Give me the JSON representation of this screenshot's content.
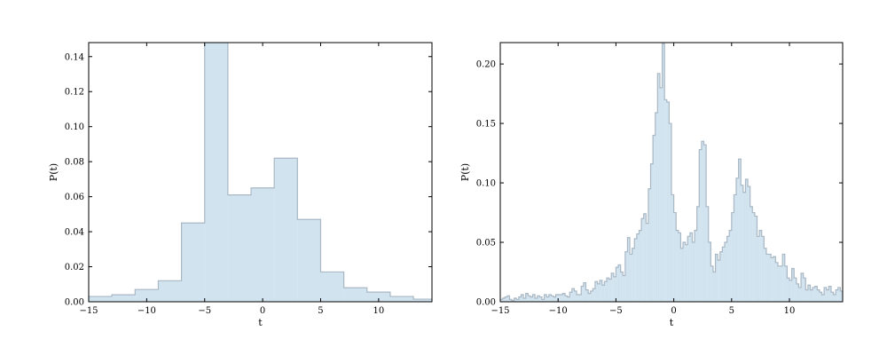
{
  "chart_data": [
    {
      "type": "histogram",
      "xlabel": "t",
      "ylabel": "P(t)",
      "xlim": [
        -15,
        14.6
      ],
      "ylim": [
        0,
        0.148
      ],
      "xticks": [
        -15,
        -10,
        -5,
        0,
        5,
        10
      ],
      "xtick_labels": [
        "−15",
        "−10",
        "−5",
        "0",
        "5",
        "10"
      ],
      "yticks": [
        0,
        0.02,
        0.04,
        0.06,
        0.08,
        0.1,
        0.12,
        0.14
      ],
      "ytick_labels": [
        "0.00",
        "0.02",
        "0.04",
        "0.06",
        "0.08",
        "0.10",
        "0.12",
        "0.14"
      ],
      "fill_color": "#d1e3ef",
      "edge_color": "#a9b8c4",
      "bin_edges": [
        -15,
        -13,
        -11,
        -9,
        -7,
        -5,
        -3,
        -1,
        1,
        3,
        5,
        7,
        9,
        11,
        13,
        14.6
      ],
      "values": [
        0.003,
        0.004,
        0.007,
        0.012,
        0.045,
        0.15,
        0.061,
        0.065,
        0.082,
        0.047,
        0.017,
        0.008,
        0.0055,
        0.003,
        0.0015
      ]
    },
    {
      "type": "histogram",
      "xlabel": "t",
      "ylabel": "P(t)",
      "xlim": [
        -15,
        14.6
      ],
      "ylim": [
        0,
        0.218
      ],
      "xticks": [
        -15,
        -10,
        -5,
        0,
        5,
        10
      ],
      "xtick_labels": [
        "−15",
        "−10",
        "−5",
        "0",
        "5",
        "10"
      ],
      "yticks": [
        0,
        0.05,
        0.1,
        0.15,
        0.2
      ],
      "ytick_labels": [
        "0.00",
        "0.05",
        "0.10",
        "0.15",
        "0.20"
      ],
      "fill_color": "#d1e3ef",
      "edge_color": "#a9b8c4",
      "bin_start": -15,
      "bin_width": 0.2,
      "values": [
        0.002,
        0.003,
        0.004,
        0.005,
        0.002,
        0.001,
        0.003,
        0.002,
        0.004,
        0.006,
        0.003,
        0.007,
        0.005,
        0.004,
        0.006,
        0.003,
        0.005,
        0.004,
        0.002,
        0.006,
        0.004,
        0.006,
        0.005,
        0.004,
        0.006,
        0.006,
        0.006,
        0.007,
        0.005,
        0.004,
        0.008,
        0.011,
        0.009,
        0.006,
        0.006,
        0.013,
        0.016,
        0.01,
        0.007,
        0.009,
        0.011,
        0.017,
        0.015,
        0.018,
        0.014,
        0.017,
        0.02,
        0.019,
        0.024,
        0.021,
        0.029,
        0.031,
        0.025,
        0.022,
        0.042,
        0.054,
        0.04,
        0.045,
        0.053,
        0.057,
        0.06,
        0.07,
        0.074,
        0.066,
        0.095,
        0.116,
        0.14,
        0.159,
        0.192,
        0.18,
        0.217,
        0.17,
        0.168,
        0.15,
        0.09,
        0.075,
        0.06,
        0.058,
        0.045,
        0.05,
        0.048,
        0.055,
        0.058,
        0.05,
        0.06,
        0.08,
        0.128,
        0.135,
        0.132,
        0.08,
        0.05,
        0.03,
        0.025,
        0.04,
        0.035,
        0.042,
        0.046,
        0.05,
        0.055,
        0.06,
        0.075,
        0.09,
        0.104,
        0.12,
        0.098,
        0.092,
        0.103,
        0.097,
        0.08,
        0.075,
        0.072,
        0.055,
        0.06,
        0.055,
        0.045,
        0.04,
        0.04,
        0.037,
        0.038,
        0.033,
        0.03,
        0.03,
        0.04,
        0.03,
        0.02,
        0.018,
        0.028,
        0.02,
        0.015,
        0.012,
        0.024,
        0.02,
        0.01,
        0.014,
        0.01,
        0.012,
        0.013,
        0.01,
        0.008,
        0.006,
        0.012,
        0.01,
        0.013,
        0.008,
        0.006,
        0.01,
        0.012,
        0.009,
        0.005,
        0.013,
        0.01,
        0.005,
        0.009,
        0.012,
        0.005,
        0.008,
        0.006,
        0.004,
        0.008,
        0.01,
        0.005,
        0.008,
        0.003,
        0.004,
        0.007,
        0.006,
        0.003,
        0.005,
        0.002,
        0.001,
        0.001,
        0.004,
        0.002,
        0.003,
        0.002,
        0.003,
        0.001,
        0.002,
        0.001,
        0.002,
        0.003,
        0.002,
        0.001,
        0.002,
        0.001,
        0.002
      ]
    }
  ]
}
